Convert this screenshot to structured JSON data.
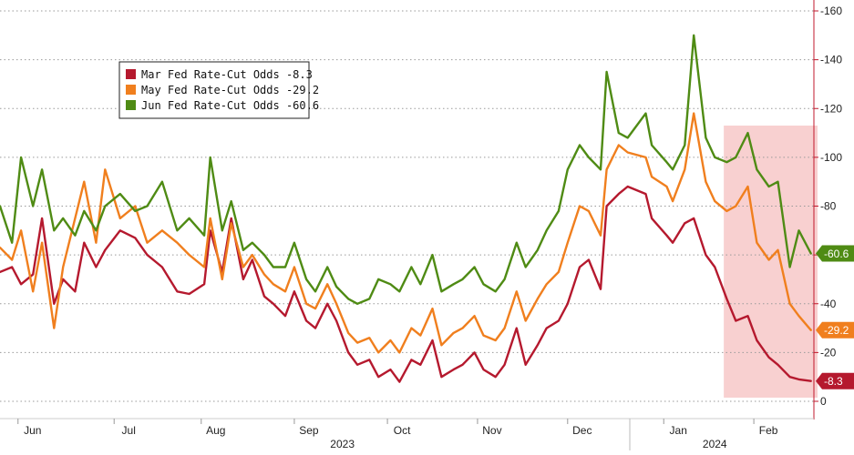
{
  "chart_data": {
    "type": "line",
    "title": "",
    "xlabel": "",
    "ylabel": "",
    "ylim": [
      0,
      160
    ],
    "y_ticks": [
      0,
      20,
      40,
      60,
      80,
      100,
      120,
      140,
      160
    ],
    "y_tick_labels": [
      "0",
      "-20",
      "-40",
      "-60",
      "-80",
      "-100",
      "-120",
      "-140",
      "-160"
    ],
    "x_ticks": [
      {
        "label": "Jun",
        "x": "2023-06-01"
      },
      {
        "label": "Jul",
        "x": "2023-07-03"
      },
      {
        "label": "Aug",
        "x": "2023-08-01"
      },
      {
        "label": "Sep",
        "x": "2023-09-01"
      },
      {
        "label": "Oct",
        "x": "2023-10-02"
      },
      {
        "label": "Nov",
        "x": "2023-11-01"
      },
      {
        "label": "Dec",
        "x": "2023-12-01"
      },
      {
        "label": "Jan",
        "x": "2024-01-02"
      },
      {
        "label": "Feb",
        "x": "2024-02-01"
      }
    ],
    "year_labels": [
      {
        "label": "2023",
        "x": "2023-09-17"
      },
      {
        "label": "2024",
        "x": "2024-01-19"
      }
    ],
    "x_range": [
      "2023-05-26",
      "2024-02-21"
    ],
    "highlight_region": {
      "x0": "2024-01-22",
      "x1": "2024-02-21",
      "color": "#f7c8c8"
    },
    "grid": "horizontal dotted",
    "legend_position": "top-left",
    "series": [
      {
        "name": "Mar Fed Rate-Cut Odds",
        "legend_label": "Mar Fed Rate-Cut Odds  -8.3",
        "color": "#b5192e",
        "last_label": "-8.3",
        "points": [
          [
            "2023-05-26",
            53
          ],
          [
            "2023-05-30",
            55
          ],
          [
            "2023-06-02",
            48
          ],
          [
            "2023-06-06",
            52
          ],
          [
            "2023-06-09",
            75
          ],
          [
            "2023-06-13",
            40
          ],
          [
            "2023-06-16",
            50
          ],
          [
            "2023-06-20",
            45
          ],
          [
            "2023-06-23",
            65
          ],
          [
            "2023-06-27",
            55
          ],
          [
            "2023-06-30",
            62
          ],
          [
            "2023-07-05",
            70
          ],
          [
            "2023-07-10",
            67
          ],
          [
            "2023-07-14",
            60
          ],
          [
            "2023-07-19",
            55
          ],
          [
            "2023-07-24",
            45
          ],
          [
            "2023-07-28",
            44
          ],
          [
            "2023-08-02",
            48
          ],
          [
            "2023-08-04",
            70
          ],
          [
            "2023-08-08",
            53
          ],
          [
            "2023-08-11",
            75
          ],
          [
            "2023-08-15",
            50
          ],
          [
            "2023-08-18",
            58
          ],
          [
            "2023-08-22",
            43
          ],
          [
            "2023-08-25",
            40
          ],
          [
            "2023-08-29",
            35
          ],
          [
            "2023-09-01",
            45
          ],
          [
            "2023-09-05",
            33
          ],
          [
            "2023-09-08",
            30
          ],
          [
            "2023-09-12",
            40
          ],
          [
            "2023-09-15",
            33
          ],
          [
            "2023-09-19",
            20
          ],
          [
            "2023-09-22",
            15
          ],
          [
            "2023-09-26",
            17
          ],
          [
            "2023-09-29",
            10
          ],
          [
            "2023-10-03",
            13
          ],
          [
            "2023-10-06",
            8
          ],
          [
            "2023-10-10",
            17
          ],
          [
            "2023-10-13",
            15
          ],
          [
            "2023-10-17",
            25
          ],
          [
            "2023-10-20",
            10
          ],
          [
            "2023-10-24",
            13
          ],
          [
            "2023-10-27",
            15
          ],
          [
            "2023-10-31",
            20
          ],
          [
            "2023-11-03",
            13
          ],
          [
            "2023-11-07",
            10
          ],
          [
            "2023-11-10",
            15
          ],
          [
            "2023-11-14",
            30
          ],
          [
            "2023-11-17",
            15
          ],
          [
            "2023-11-21",
            23
          ],
          [
            "2023-11-24",
            30
          ],
          [
            "2023-11-28",
            33
          ],
          [
            "2023-12-01",
            40
          ],
          [
            "2023-12-05",
            55
          ],
          [
            "2023-12-08",
            58
          ],
          [
            "2023-12-12",
            46
          ],
          [
            "2023-12-14",
            80
          ],
          [
            "2023-12-18",
            85
          ],
          [
            "2023-12-21",
            88
          ],
          [
            "2023-12-27",
            85
          ],
          [
            "2023-12-29",
            75
          ],
          [
            "2024-01-03",
            68
          ],
          [
            "2024-01-05",
            65
          ],
          [
            "2024-01-09",
            73
          ],
          [
            "2024-01-12",
            75
          ],
          [
            "2024-01-16",
            60
          ],
          [
            "2024-01-19",
            55
          ],
          [
            "2024-01-23",
            42
          ],
          [
            "2024-01-26",
            33
          ],
          [
            "2024-01-30",
            35
          ],
          [
            "2024-02-02",
            25
          ],
          [
            "2024-02-06",
            18
          ],
          [
            "2024-02-09",
            15
          ],
          [
            "2024-02-13",
            10
          ],
          [
            "2024-02-16",
            9
          ],
          [
            "2024-02-20",
            8.3
          ]
        ]
      },
      {
        "name": "May Fed Rate-Cut Odds",
        "legend_label": "May Fed Rate-Cut Odds  -29.2",
        "color": "#f07f1e",
        "last_label": "-29.2",
        "points": [
          [
            "2023-05-26",
            63
          ],
          [
            "2023-05-30",
            58
          ],
          [
            "2023-06-02",
            70
          ],
          [
            "2023-06-06",
            45
          ],
          [
            "2023-06-09",
            65
          ],
          [
            "2023-06-13",
            30
          ],
          [
            "2023-06-16",
            55
          ],
          [
            "2023-06-20",
            75
          ],
          [
            "2023-06-23",
            90
          ],
          [
            "2023-06-27",
            65
          ],
          [
            "2023-06-30",
            95
          ],
          [
            "2023-07-05",
            75
          ],
          [
            "2023-07-10",
            80
          ],
          [
            "2023-07-14",
            65
          ],
          [
            "2023-07-19",
            70
          ],
          [
            "2023-07-24",
            65
          ],
          [
            "2023-07-28",
            60
          ],
          [
            "2023-08-02",
            55
          ],
          [
            "2023-08-04",
            75
          ],
          [
            "2023-08-08",
            50
          ],
          [
            "2023-08-11",
            73
          ],
          [
            "2023-08-15",
            55
          ],
          [
            "2023-08-18",
            60
          ],
          [
            "2023-08-22",
            52
          ],
          [
            "2023-08-25",
            48
          ],
          [
            "2023-08-29",
            45
          ],
          [
            "2023-09-01",
            55
          ],
          [
            "2023-09-05",
            40
          ],
          [
            "2023-09-08",
            38
          ],
          [
            "2023-09-12",
            48
          ],
          [
            "2023-09-15",
            40
          ],
          [
            "2023-09-19",
            28
          ],
          [
            "2023-09-22",
            24
          ],
          [
            "2023-09-26",
            26
          ],
          [
            "2023-09-29",
            20
          ],
          [
            "2023-10-03",
            25
          ],
          [
            "2023-10-06",
            20
          ],
          [
            "2023-10-10",
            30
          ],
          [
            "2023-10-13",
            27
          ],
          [
            "2023-10-17",
            38
          ],
          [
            "2023-10-20",
            23
          ],
          [
            "2023-10-24",
            28
          ],
          [
            "2023-10-27",
            30
          ],
          [
            "2023-10-31",
            35
          ],
          [
            "2023-11-03",
            27
          ],
          [
            "2023-11-07",
            25
          ],
          [
            "2023-11-10",
            30
          ],
          [
            "2023-11-14",
            45
          ],
          [
            "2023-11-17",
            33
          ],
          [
            "2023-11-21",
            42
          ],
          [
            "2023-11-24",
            48
          ],
          [
            "2023-11-28",
            53
          ],
          [
            "2023-12-01",
            65
          ],
          [
            "2023-12-05",
            80
          ],
          [
            "2023-12-08",
            78
          ],
          [
            "2023-12-12",
            68
          ],
          [
            "2023-12-14",
            95
          ],
          [
            "2023-12-18",
            105
          ],
          [
            "2023-12-21",
            102
          ],
          [
            "2023-12-27",
            100
          ],
          [
            "2023-12-29",
            92
          ],
          [
            "2024-01-03",
            88
          ],
          [
            "2024-01-05",
            82
          ],
          [
            "2024-01-09",
            95
          ],
          [
            "2024-01-12",
            118
          ],
          [
            "2024-01-16",
            90
          ],
          [
            "2024-01-19",
            82
          ],
          [
            "2024-01-23",
            78
          ],
          [
            "2024-01-26",
            80
          ],
          [
            "2024-01-30",
            88
          ],
          [
            "2024-02-02",
            65
          ],
          [
            "2024-02-06",
            58
          ],
          [
            "2024-02-09",
            62
          ],
          [
            "2024-02-13",
            40
          ],
          [
            "2024-02-16",
            35
          ],
          [
            "2024-02-20",
            29.2
          ]
        ]
      },
      {
        "name": "Jun Fed Rate-Cut Odds",
        "legend_label": "Jun Fed Rate-Cut Odds  -60.6",
        "color": "#4f8b14",
        "last_label": "-60.6",
        "points": [
          [
            "2023-05-26",
            80
          ],
          [
            "2023-05-30",
            65
          ],
          [
            "2023-06-02",
            100
          ],
          [
            "2023-06-06",
            80
          ],
          [
            "2023-06-09",
            95
          ],
          [
            "2023-06-13",
            70
          ],
          [
            "2023-06-16",
            75
          ],
          [
            "2023-06-20",
            68
          ],
          [
            "2023-06-23",
            78
          ],
          [
            "2023-06-27",
            70
          ],
          [
            "2023-06-30",
            80
          ],
          [
            "2023-07-05",
            85
          ],
          [
            "2023-07-10",
            78
          ],
          [
            "2023-07-14",
            80
          ],
          [
            "2023-07-19",
            90
          ],
          [
            "2023-07-24",
            70
          ],
          [
            "2023-07-28",
            75
          ],
          [
            "2023-08-02",
            68
          ],
          [
            "2023-08-04",
            100
          ],
          [
            "2023-08-08",
            70
          ],
          [
            "2023-08-11",
            82
          ],
          [
            "2023-08-15",
            62
          ],
          [
            "2023-08-18",
            65
          ],
          [
            "2023-08-22",
            60
          ],
          [
            "2023-08-25",
            55
          ],
          [
            "2023-08-29",
            55
          ],
          [
            "2023-09-01",
            65
          ],
          [
            "2023-09-05",
            50
          ],
          [
            "2023-09-08",
            45
          ],
          [
            "2023-09-12",
            55
          ],
          [
            "2023-09-15",
            47
          ],
          [
            "2023-09-19",
            42
          ],
          [
            "2023-09-22",
            40
          ],
          [
            "2023-09-26",
            42
          ],
          [
            "2023-09-29",
            50
          ],
          [
            "2023-10-03",
            48
          ],
          [
            "2023-10-06",
            45
          ],
          [
            "2023-10-10",
            55
          ],
          [
            "2023-10-13",
            48
          ],
          [
            "2023-10-17",
            60
          ],
          [
            "2023-10-20",
            45
          ],
          [
            "2023-10-24",
            48
          ],
          [
            "2023-10-27",
            50
          ],
          [
            "2023-10-31",
            55
          ],
          [
            "2023-11-03",
            48
          ],
          [
            "2023-11-07",
            45
          ],
          [
            "2023-11-10",
            50
          ],
          [
            "2023-11-14",
            65
          ],
          [
            "2023-11-17",
            55
          ],
          [
            "2023-11-21",
            62
          ],
          [
            "2023-11-24",
            70
          ],
          [
            "2023-11-28",
            78
          ],
          [
            "2023-12-01",
            95
          ],
          [
            "2023-12-05",
            105
          ],
          [
            "2023-12-08",
            100
          ],
          [
            "2023-12-12",
            95
          ],
          [
            "2023-12-14",
            135
          ],
          [
            "2023-12-18",
            110
          ],
          [
            "2023-12-21",
            108
          ],
          [
            "2023-12-27",
            118
          ],
          [
            "2023-12-29",
            105
          ],
          [
            "2024-01-03",
            98
          ],
          [
            "2024-01-05",
            95
          ],
          [
            "2024-01-09",
            105
          ],
          [
            "2024-01-12",
            150
          ],
          [
            "2024-01-16",
            108
          ],
          [
            "2024-01-19",
            100
          ],
          [
            "2024-01-23",
            98
          ],
          [
            "2024-01-26",
            100
          ],
          [
            "2024-01-30",
            110
          ],
          [
            "2024-02-02",
            95
          ],
          [
            "2024-02-06",
            88
          ],
          [
            "2024-02-09",
            90
          ],
          [
            "2024-02-13",
            55
          ],
          [
            "2024-02-16",
            70
          ],
          [
            "2024-02-20",
            60.6
          ]
        ]
      }
    ]
  }
}
